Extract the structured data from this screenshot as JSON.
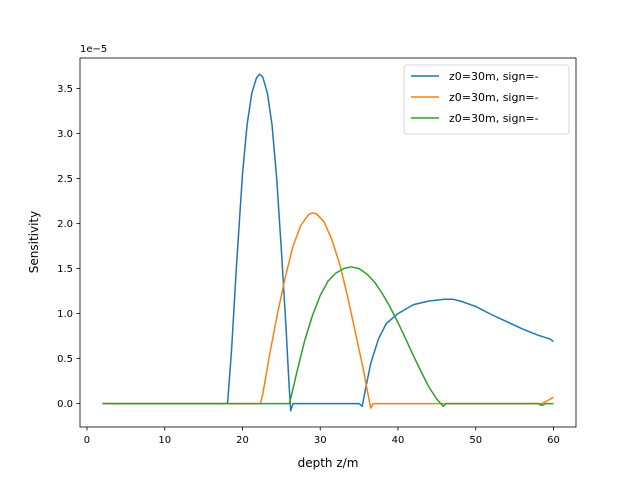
{
  "chart_data": {
    "type": "line",
    "title": "",
    "xlabel": "depth z/m",
    "ylabel": "Sensitivity",
    "offset_text": "1e−5",
    "xlim": [
      -0.9,
      62.9
    ],
    "ylim": [
      -0.26,
      3.84
    ],
    "x_ticks": [
      0,
      10,
      20,
      30,
      40,
      50,
      60
    ],
    "y_ticks": [
      0.0,
      0.5,
      1.0,
      1.5,
      2.0,
      2.5,
      3.0,
      3.5
    ],
    "grid": false,
    "legend_position": "top-right",
    "series": [
      {
        "name": "z0=30m, sign=-",
        "color": "#1f77b4",
        "points": [
          [
            2,
            0
          ],
          [
            18,
            0
          ],
          [
            18.1,
            0.02
          ],
          [
            18.6,
            0.6
          ],
          [
            19.2,
            1.5
          ],
          [
            20.0,
            2.55
          ],
          [
            20.6,
            3.1
          ],
          [
            21.2,
            3.45
          ],
          [
            21.8,
            3.62
          ],
          [
            22.2,
            3.66
          ],
          [
            22.6,
            3.63
          ],
          [
            23.2,
            3.45
          ],
          [
            23.8,
            3.1
          ],
          [
            24.4,
            2.5
          ],
          [
            25.0,
            1.7
          ],
          [
            25.6,
            0.85
          ],
          [
            26.0,
            0.2
          ],
          [
            26.2,
            -0.08
          ],
          [
            26.5,
            0
          ],
          [
            35,
            0
          ],
          [
            35.4,
            -0.03
          ],
          [
            35.8,
            0.15
          ],
          [
            36.5,
            0.45
          ],
          [
            37.5,
            0.72
          ],
          [
            38.5,
            0.89
          ],
          [
            40,
            1.0
          ],
          [
            42,
            1.1
          ],
          [
            44,
            1.14
          ],
          [
            46,
            1.16
          ],
          [
            47,
            1.16
          ],
          [
            48,
            1.14
          ],
          [
            50,
            1.08
          ],
          [
            52,
            0.99
          ],
          [
            54,
            0.91
          ],
          [
            56,
            0.83
          ],
          [
            58,
            0.76
          ],
          [
            59.5,
            0.72
          ],
          [
            60,
            0.69
          ]
        ]
      },
      {
        "name": "z0=30m, sign=-",
        "color": "#ff7f0e",
        "points": [
          [
            2,
            0
          ],
          [
            22.3,
            0
          ],
          [
            22.6,
            0.1
          ],
          [
            23.5,
            0.55
          ],
          [
            24.5,
            1.0
          ],
          [
            25.5,
            1.4
          ],
          [
            26.5,
            1.75
          ],
          [
            27.5,
            1.98
          ],
          [
            28.5,
            2.1
          ],
          [
            29.0,
            2.12
          ],
          [
            29.5,
            2.11
          ],
          [
            30.5,
            2.02
          ],
          [
            31.5,
            1.82
          ],
          [
            32.5,
            1.55
          ],
          [
            33.5,
            1.2
          ],
          [
            34.5,
            0.8
          ],
          [
            35.5,
            0.4
          ],
          [
            36.2,
            0.08
          ],
          [
            36.5,
            -0.05
          ],
          [
            36.8,
            0
          ],
          [
            58.5,
            0
          ],
          [
            59.2,
            0.03
          ],
          [
            60,
            0.07
          ]
        ]
      },
      {
        "name": "z0=30m, sign=-",
        "color": "#2ca02c",
        "points": [
          [
            2,
            0
          ],
          [
            26,
            0
          ],
          [
            26.1,
            0.02
          ],
          [
            27,
            0.35
          ],
          [
            28,
            0.7
          ],
          [
            29,
            0.98
          ],
          [
            30,
            1.2
          ],
          [
            31,
            1.36
          ],
          [
            32,
            1.45
          ],
          [
            33,
            1.5
          ],
          [
            34,
            1.52
          ],
          [
            35,
            1.5
          ],
          [
            36,
            1.44
          ],
          [
            37,
            1.35
          ],
          [
            38,
            1.22
          ],
          [
            39,
            1.07
          ],
          [
            40,
            0.9
          ],
          [
            41,
            0.72
          ],
          [
            42,
            0.53
          ],
          [
            43,
            0.35
          ],
          [
            44,
            0.18
          ],
          [
            45,
            0.05
          ],
          [
            45.8,
            -0.03
          ],
          [
            46.2,
            0
          ],
          [
            58,
            0
          ],
          [
            58.5,
            -0.02
          ],
          [
            59,
            0
          ],
          [
            60,
            0
          ]
        ]
      }
    ]
  }
}
